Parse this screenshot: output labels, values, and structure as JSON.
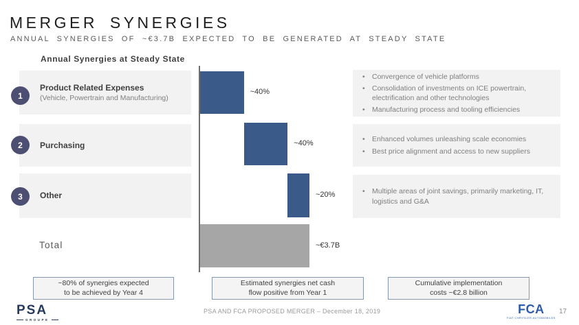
{
  "header": {
    "title": "MERGER SYNERGIES",
    "subtitle": "ANNUAL SYNERGIES OF ~€3.7B EXPECTED TO BE GENERATED AT STEADY STATE"
  },
  "chart": {
    "heading": "Annual Synergies at Steady State"
  },
  "rows": [
    {
      "number": "1",
      "title": "Product Related Expenses",
      "subtitle": "(Vehicle, Powertrain and Manufacturing)",
      "value": "~40%",
      "bullets": [
        "Convergence of vehicle platforms",
        "Consolidation of investments on ICE powertrain, electrification and other technologies",
        "Manufacturing process and tooling efficiencies"
      ]
    },
    {
      "number": "2",
      "title": "Purchasing",
      "value": "~40%",
      "bullets": [
        "Enhanced volumes unleashing scale economies",
        "Best price alignment and access to new suppliers"
      ]
    },
    {
      "number": "3",
      "title": "Other",
      "value": "~20%",
      "bullets": [
        "Multiple areas of joint savings, primarily marketing, IT, logistics and G&A"
      ]
    }
  ],
  "total_row": {
    "label": "Total",
    "value": "~€3.7B"
  },
  "chart_data": {
    "type": "bar",
    "variant": "horizontal-waterfall",
    "title": "Annual Synergies at Steady State",
    "categories": [
      "Product Related Expenses (Vehicle, Powertrain and Manufacturing)",
      "Purchasing",
      "Other",
      "Total"
    ],
    "values_percent_of_total": [
      40,
      40,
      20,
      100
    ],
    "data_labels": [
      "~40%",
      "~40%",
      "~20%",
      "~€3.7B"
    ],
    "total_value": "~€3.7B",
    "xlim": [
      0,
      100
    ],
    "grid": false,
    "legend": "none",
    "bar_color": "#3A5B8A",
    "total_bar_color": "#A6A6A6"
  },
  "callouts": [
    {
      "line1": "~80% of synergies expected",
      "line2": "to be achieved by Year 4"
    },
    {
      "line1": "Estimated synergies net cash",
      "line2": "flow positive from Year 1"
    },
    {
      "line1": "Cumulative implementation",
      "line2": "costs ~€2.8 billion"
    }
  ],
  "footer": {
    "psa_logo": {
      "name": "PSA",
      "subtext": "GROUPE"
    },
    "center_text": "PSA AND FCA PROPOSED MERGER – December 18, 2019",
    "fca_logo": {
      "name": "FCA",
      "subtext": "FIAT CHRYSLER AUTOMOBILES"
    },
    "page_number": "17"
  },
  "colors": {
    "bar_blue": "#3A5B8A",
    "bar_gray": "#A6A6A6",
    "circle_navy": "#4D4F72",
    "panel_gray": "#F2F2F2",
    "callout_border": "#8496B0",
    "psa_navy": "#243A5E",
    "fca_blue": "#2F5CA8"
  }
}
